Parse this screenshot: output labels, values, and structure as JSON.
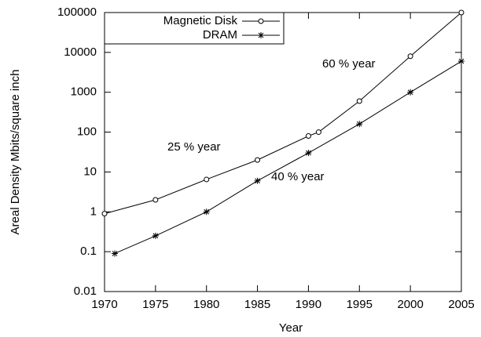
{
  "chart_data": {
    "type": "line",
    "xlabel": "Year",
    "ylabel": "Areal Density Mbits/square inch",
    "xlim": [
      1970,
      2005
    ],
    "xticks": [
      1970,
      1975,
      1980,
      1985,
      1990,
      1995,
      2000,
      2005
    ],
    "ylim": [
      0.01,
      100000
    ],
    "yticks": [
      0.01,
      0.1,
      1,
      10,
      100,
      1000,
      10000,
      100000
    ],
    "log_y": true,
    "grid": false,
    "legend": "upper left",
    "series": [
      {
        "name": "Magnetic Disk",
        "color": "#000000",
        "marker": "circle",
        "x": [
          1970,
          1975,
          1980,
          1985,
          1990,
          1991,
          1995,
          2000,
          2005
        ],
        "values": [
          0.9,
          2,
          6.5,
          20,
          80,
          100,
          600,
          8000,
          100000
        ]
      },
      {
        "name": "DRAM",
        "color": "#000000",
        "marker": "star",
        "x": [
          1971,
          1975,
          1980,
          1985,
          1990,
          1995,
          2000,
          2005
        ],
        "values": [
          0.09,
          0.25,
          1,
          6,
          30,
          160,
          1000,
          6000
        ]
      }
    ],
    "annotations": [
      "25 % year",
      "40 % year",
      "60 % year"
    ]
  }
}
